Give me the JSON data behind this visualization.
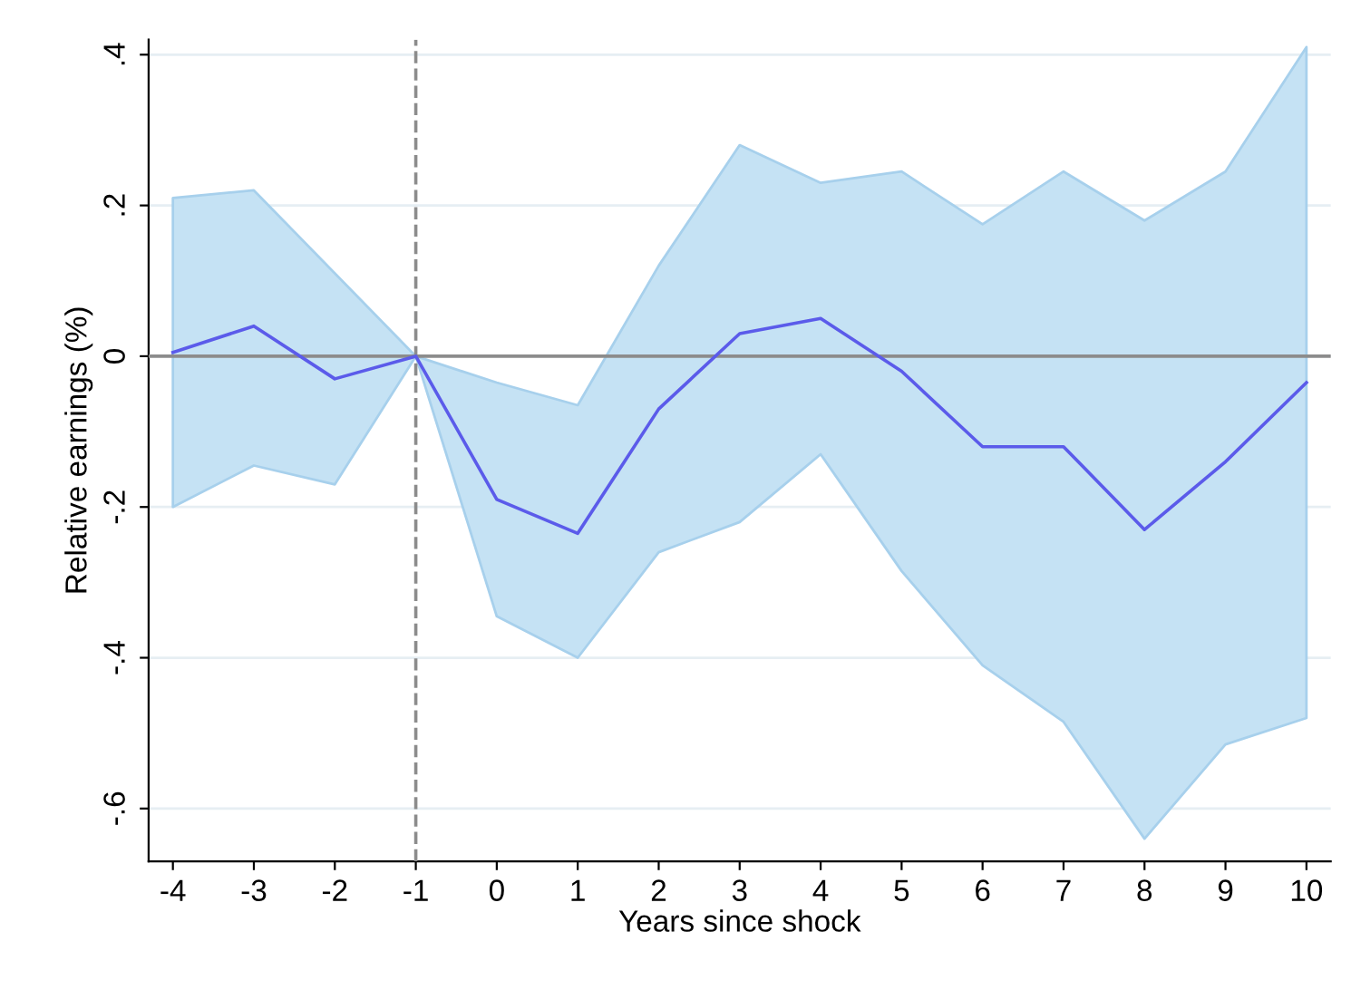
{
  "chart_data": {
    "type": "line",
    "xlabel": "Years since shock",
    "ylabel": "Relative earnings (%)",
    "x": [
      -4,
      -3,
      -2,
      -1,
      0,
      1,
      2,
      3,
      4,
      5,
      6,
      7,
      8,
      9,
      10
    ],
    "series": [
      {
        "color": "#5b5bea",
        "values": [
          0.005,
          0.04,
          -0.03,
          0,
          -0.19,
          -0.235,
          -0.07,
          0.03,
          0.05,
          -0.02,
          -0.12,
          -0.12,
          -0.23,
          -0.14,
          -0.035
        ],
        "lower": [
          -0.2,
          -0.145,
          -0.17,
          0,
          -0.345,
          -0.4,
          -0.26,
          -0.22,
          -0.13,
          -0.285,
          -0.41,
          -0.485,
          -0.64,
          -0.515,
          -0.48
        ],
        "upper": [
          0.21,
          0.22,
          0.11,
          0,
          -0.035,
          -0.065,
          0.12,
          0.28,
          0.23,
          0.245,
          0.175,
          0.245,
          0.18,
          0.245,
          0.41
        ]
      }
    ],
    "xlim": [
      -4.3,
      10.3
    ],
    "ylim": [
      -0.67,
      0.42
    ],
    "xticks": [
      -4,
      -3,
      -2,
      -1,
      0,
      1,
      2,
      3,
      4,
      5,
      6,
      7,
      8,
      9,
      10
    ],
    "yticks": [
      {
        "value": -0.6,
        "label": "-.6"
      },
      {
        "value": -0.4,
        "label": "-.4"
      },
      {
        "value": -0.2,
        "label": "-.2"
      },
      0,
      {
        "value": 0.2,
        "label": ".2"
      },
      {
        "value": 0.4,
        "label": ".4"
      }
    ],
    "grid": "y",
    "marker": "none",
    "line_style": "solid",
    "ref_lines": [
      {
        "axis": "y",
        "value": 0,
        "color": "#8c8c8c",
        "line_style": "solid"
      },
      {
        "axis": "x",
        "value": -1,
        "color": "#8c8c8c",
        "line_style": "dashed"
      }
    ]
  }
}
